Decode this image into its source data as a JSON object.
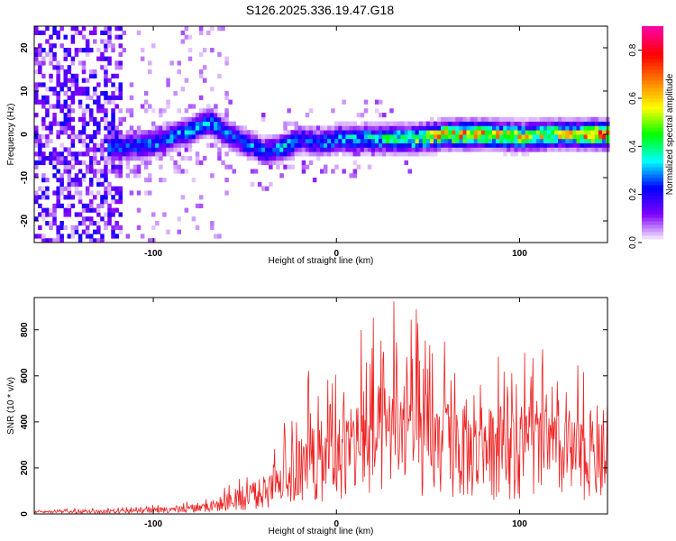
{
  "figure": {
    "title": "S126.2025.336.19.47.G18"
  },
  "chart_data": [
    {
      "type": "heatmap",
      "title": "S126.2025.336.19.47.G18",
      "xlabel": "Height of straight line (km)",
      "ylabel": "Frequency (Hz)",
      "xlim": [
        -165,
        148
      ],
      "ylim": [
        -25,
        25
      ],
      "xticks": [
        -100,
        0,
        100
      ],
      "xtick_labels": [
        "-100",
        "0",
        "100"
      ],
      "yticks": [
        -20,
        -10,
        0,
        10,
        20
      ],
      "ytick_labels": [
        "-20",
        "-10",
        "0",
        "10",
        "20"
      ],
      "colorbar": {
        "label": "Normalized spectral amplitude",
        "range": [
          0,
          0.9
        ],
        "ticks": [
          0.0,
          0.2,
          0.4,
          0.6,
          0.8
        ],
        "tick_labels": [
          "0.0",
          "0.2",
          "0.4",
          "0.6",
          "0.8"
        ],
        "colormap": [
          "#ffffff",
          "#8000ff",
          "#0000ff",
          "#00ffff",
          "#00ff00",
          "#ffff00",
          "#ff8000",
          "#ff0000",
          "#ff00a0"
        ]
      },
      "ridge": {
        "description": "energy concentrated near 0 Hz; broadband noise below -120 km",
        "x": [
          -120,
          -100,
          -80,
          -70,
          -60,
          -50,
          -40,
          -30,
          -20,
          -10,
          0,
          20,
          40,
          60,
          80,
          100,
          120,
          140
        ],
        "center_hz": [
          -3,
          -2,
          1,
          3,
          0,
          -2,
          -4,
          -3,
          -1,
          -2,
          -1,
          -1,
          -1,
          0,
          0,
          -0.5,
          0,
          0
        ],
        "peak_amplitude": [
          0.3,
          0.3,
          0.35,
          0.35,
          0.3,
          0.3,
          0.3,
          0.35,
          0.3,
          0.3,
          0.35,
          0.4,
          0.5,
          0.7,
          0.7,
          0.6,
          0.6,
          0.75
        ]
      }
    },
    {
      "type": "line",
      "xlabel": "Height of straight line (km)",
      "ylabel": "SNR (10 * v/v)",
      "xlim": [
        -165,
        148
      ],
      "ylim": [
        0,
        940
      ],
      "xticks": [
        -100,
        0,
        100
      ],
      "xtick_labels": [
        "-100",
        "0",
        "100"
      ],
      "yticks": [
        0,
        200,
        400,
        600,
        800
      ],
      "ytick_labels": [
        "0",
        "200",
        "400",
        "600",
        "800"
      ],
      "series": [
        {
          "name": "SNR",
          "color": "#ee2222",
          "envelope_x": [
            -165,
            -120,
            -90,
            -70,
            -60,
            -50,
            -40,
            -30,
            -10,
            0,
            10,
            20,
            30,
            40,
            50,
            60,
            80,
            100,
            115,
            130,
            148
          ],
          "envelope_max": [
            20,
            30,
            45,
            70,
            150,
            160,
            250,
            390,
            720,
            760,
            840,
            860,
            940,
            920,
            900,
            830,
            680,
            760,
            720,
            650,
            620
          ],
          "envelope_typical": [
            8,
            12,
            20,
            35,
            60,
            70,
            110,
            160,
            240,
            280,
            330,
            370,
            390,
            370,
            350,
            330,
            300,
            320,
            300,
            280,
            260
          ]
        }
      ]
    }
  ]
}
